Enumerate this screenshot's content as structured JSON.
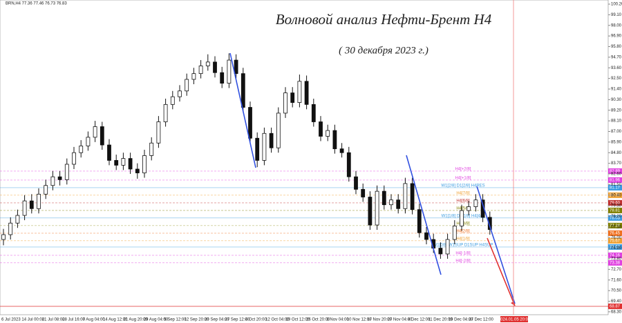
{
  "chart_data": {
    "type": "candlestick",
    "header": "BRN,H4  77.36 77.46 76.73 76.83",
    "title": "Волновой анализ Нефти-Брент H4",
    "subtitle": "( 30 декабря 2023 г.)",
    "open": [
      75.8,
      76.3,
      77.5,
      78.3,
      79.8,
      79.0,
      80.5,
      81.4,
      82.3,
      82.0,
      83.6,
      84.8,
      85.5,
      86.4,
      87.5,
      85.6,
      84.0,
      83.5,
      84.2,
      83.1,
      82.7,
      84.5,
      85.8,
      88.0,
      89.8,
      90.6,
      91.2,
      92.4,
      93.0,
      93.8,
      94.2,
      93.1,
      92.0,
      94.4,
      93.0,
      89.5,
      86.3,
      84.0,
      86.8,
      85.3,
      88.9,
      91.0,
      90.0,
      92.2,
      89.8,
      88.0,
      86.5,
      87.1,
      85.2,
      84.8,
      82.3,
      81.0,
      80.2,
      77.3,
      80.8,
      79.4,
      79.9,
      79.0,
      81.6,
      78.9,
      76.5,
      75.8,
      74.9,
      74.3,
      75.8,
      77.2,
      78.8,
      79.2,
      79.9,
      78.1
    ],
    "high": [
      76.9,
      78.1,
      78.9,
      80.4,
      80.5,
      81.1,
      82.0,
      82.9,
      82.9,
      84.2,
      85.4,
      86.1,
      87.0,
      88.1,
      88.0,
      86.2,
      84.6,
      84.8,
      84.8,
      83.7,
      85.1,
      86.4,
      88.6,
      90.4,
      91.2,
      91.8,
      93.0,
      93.6,
      94.4,
      95.0,
      94.8,
      93.7,
      95.1,
      95.0,
      93.6,
      90.1,
      86.9,
      87.4,
      87.4,
      89.5,
      91.6,
      91.6,
      92.9,
      92.8,
      90.4,
      88.6,
      87.7,
      87.7,
      85.8,
      85.4,
      82.9,
      81.6,
      80.8,
      81.4,
      81.4,
      80.5,
      80.5,
      82.2,
      82.2,
      79.5,
      77.1,
      76.4,
      75.5,
      76.4,
      77.8,
      79.4,
      79.8,
      80.5,
      80.5,
      78.7
    ],
    "low": [
      75.2,
      75.8,
      77.0,
      77.8,
      78.5,
      78.5,
      80.0,
      80.9,
      81.4,
      81.5,
      83.1,
      84.3,
      85.0,
      85.9,
      85.1,
      83.5,
      83.0,
      83.0,
      82.6,
      82.1,
      82.2,
      84.0,
      85.3,
      87.5,
      89.3,
      90.1,
      90.7,
      91.9,
      92.5,
      93.3,
      92.6,
      91.5,
      91.5,
      92.5,
      89.0,
      85.8,
      83.3,
      83.5,
      84.8,
      84.8,
      88.4,
      89.5,
      89.5,
      89.3,
      87.5,
      86.0,
      86.0,
      84.7,
      84.3,
      81.8,
      80.5,
      79.7,
      76.8,
      76.8,
      78.9,
      78.9,
      78.5,
      78.5,
      78.4,
      76.0,
      75.3,
      74.4,
      73.8,
      73.8,
      75.3,
      76.7,
      78.3,
      78.7,
      77.6,
      76.3
    ],
    "close": [
      76.3,
      77.5,
      78.3,
      79.8,
      79.0,
      80.5,
      81.4,
      82.3,
      82.0,
      83.6,
      84.8,
      85.5,
      86.4,
      87.5,
      85.6,
      84.0,
      83.5,
      84.2,
      83.1,
      82.7,
      84.5,
      85.8,
      88.0,
      89.8,
      90.6,
      91.2,
      92.4,
      93.0,
      93.8,
      94.2,
      93.1,
      92.0,
      94.4,
      93.0,
      89.5,
      86.3,
      84.0,
      86.8,
      85.3,
      88.9,
      91.0,
      90.0,
      92.2,
      89.8,
      88.0,
      86.5,
      87.1,
      85.2,
      84.8,
      82.3,
      81.0,
      80.2,
      77.3,
      80.8,
      79.4,
      79.9,
      79.0,
      81.6,
      78.9,
      76.5,
      75.8,
      74.9,
      74.3,
      75.8,
      77.2,
      78.8,
      79.2,
      79.9,
      78.1,
      76.83
    ],
    "ylim": [
      68.0,
      100.63
    ],
    "yticks": [
      {
        "value": 100.2,
        "label": "100.20"
      },
      {
        "value": 99.1,
        "label": "99.10"
      },
      {
        "value": 98.0,
        "label": "98.00"
      },
      {
        "value": 96.9,
        "label": "96.90"
      },
      {
        "value": 95.8,
        "label": "95.80"
      },
      {
        "value": 94.7,
        "label": "94.70"
      },
      {
        "value": 93.6,
        "label": "93.60"
      },
      {
        "value": 92.5,
        "label": "92.50"
      },
      {
        "value": 91.4,
        "label": "91.40"
      },
      {
        "value": 90.3,
        "label": "90.30"
      },
      {
        "value": 89.2,
        "label": "89.20"
      },
      {
        "value": 88.1,
        "label": "88.10"
      },
      {
        "value": 87.0,
        "label": "87.00"
      },
      {
        "value": 85.9,
        "label": "85.90"
      },
      {
        "value": 84.8,
        "label": "84.80"
      },
      {
        "value": 83.7,
        "label": "83.70"
      },
      {
        "value": 82.6,
        "label": "82.60"
      },
      {
        "value": 81.5,
        "label": "81.50"
      },
      {
        "value": 80.4,
        "label": "80.40"
      },
      {
        "value": 79.3,
        "label": "79.30"
      },
      {
        "value": 78.2,
        "label": "78.20"
      },
      {
        "value": 77.1,
        "label": "77.10"
      },
      {
        "value": 76.0,
        "label": "76.00"
      },
      {
        "value": 74.9,
        "label": "74.90"
      },
      {
        "value": 73.8,
        "label": "73.80"
      },
      {
        "value": 72.7,
        "label": "72.70"
      },
      {
        "value": 71.6,
        "label": "71.60"
      },
      {
        "value": 70.5,
        "label": "70.50"
      },
      {
        "value": 69.4,
        "label": "69.40"
      },
      {
        "value": 68.3,
        "label": "68.30"
      }
    ],
    "xtick_labels": [
      "6 Jul 2023",
      "14 Jul 00:00",
      "21 Jul 08:00",
      "28 Jul 16:00",
      "7 Aug 04:00",
      "14 Aug 12:00",
      "21 Aug 20:00",
      "29 Aug 04:00",
      "5 Sep 12:00",
      "12 Sep 20:00",
      "20 Sep 04:00",
      "27 Sep 12:00",
      "4 Oct 20:00",
      "12 Oct 04:00",
      "19 Oct 12:00",
      "26 Oct 20:00",
      "3 Nov 04:00",
      "10 Nov 12:00",
      "17 Nov 20:00",
      "27 Nov 04:00",
      "4 Dec 12:00",
      "11 Dec 20:00",
      "19 Dec 04:00",
      "27 Dec 12:00"
    ],
    "cursor_date": "2024.01.05 20:00",
    "levels": [
      {
        "name": "H4[+2/8]",
        "value": 82.89,
        "label": "82.89",
        "color": "#e040e0"
      },
      {
        "name": "H4[+1/8]",
        "value": 81.96,
        "label": "81.96",
        "color": "#e040e0"
      },
      {
        "name": "W1[2/8] D1[2/8] H4RES",
        "value": 81.17,
        "label": "81.17",
        "color": "#3a9be0"
      },
      {
        "name": "H4[7/8]",
        "value": 80.39,
        "label": "80.39",
        "color": "#f0a030"
      },
      {
        "name": "H4[6/8]",
        "value": 79.6,
        "label": "79.60",
        "color": "#c03030"
      },
      {
        "name": "H4[5/8]",
        "value": 78.81,
        "label": "78.81",
        "color": "#808000"
      },
      {
        "name": "W1[1/8] D1[1/8] H4[4/8]",
        "value": 78.03,
        "label": "78.03",
        "color": "#3a9be0"
      },
      {
        "name": "H4[3/8]",
        "value": 77.24,
        "label": "77.24",
        "color": "#808000"
      },
      {
        "name": "H4[2/8]",
        "value": 76.45,
        "label": "76.45",
        "color": "#f07020"
      },
      {
        "name": "H4[1/8]",
        "value": 75.67,
        "label": "75.67",
        "color": "#f0a030"
      },
      {
        "name": "W1[0/8] W1SUP D1SUP H4SUP",
        "value": 75.02,
        "label": "75.02",
        "color": "#3a9be0"
      },
      {
        "name": "H4[-1/8]",
        "value": 74.16,
        "label": "74.16",
        "color": "#e040e0"
      },
      {
        "name": "H4[-2/8]",
        "value": 73.38,
        "label": "73.38",
        "color": "#e040e0"
      }
    ],
    "target": {
      "value": 68.87,
      "label": "68.87",
      "color": "#e03030"
    }
  }
}
